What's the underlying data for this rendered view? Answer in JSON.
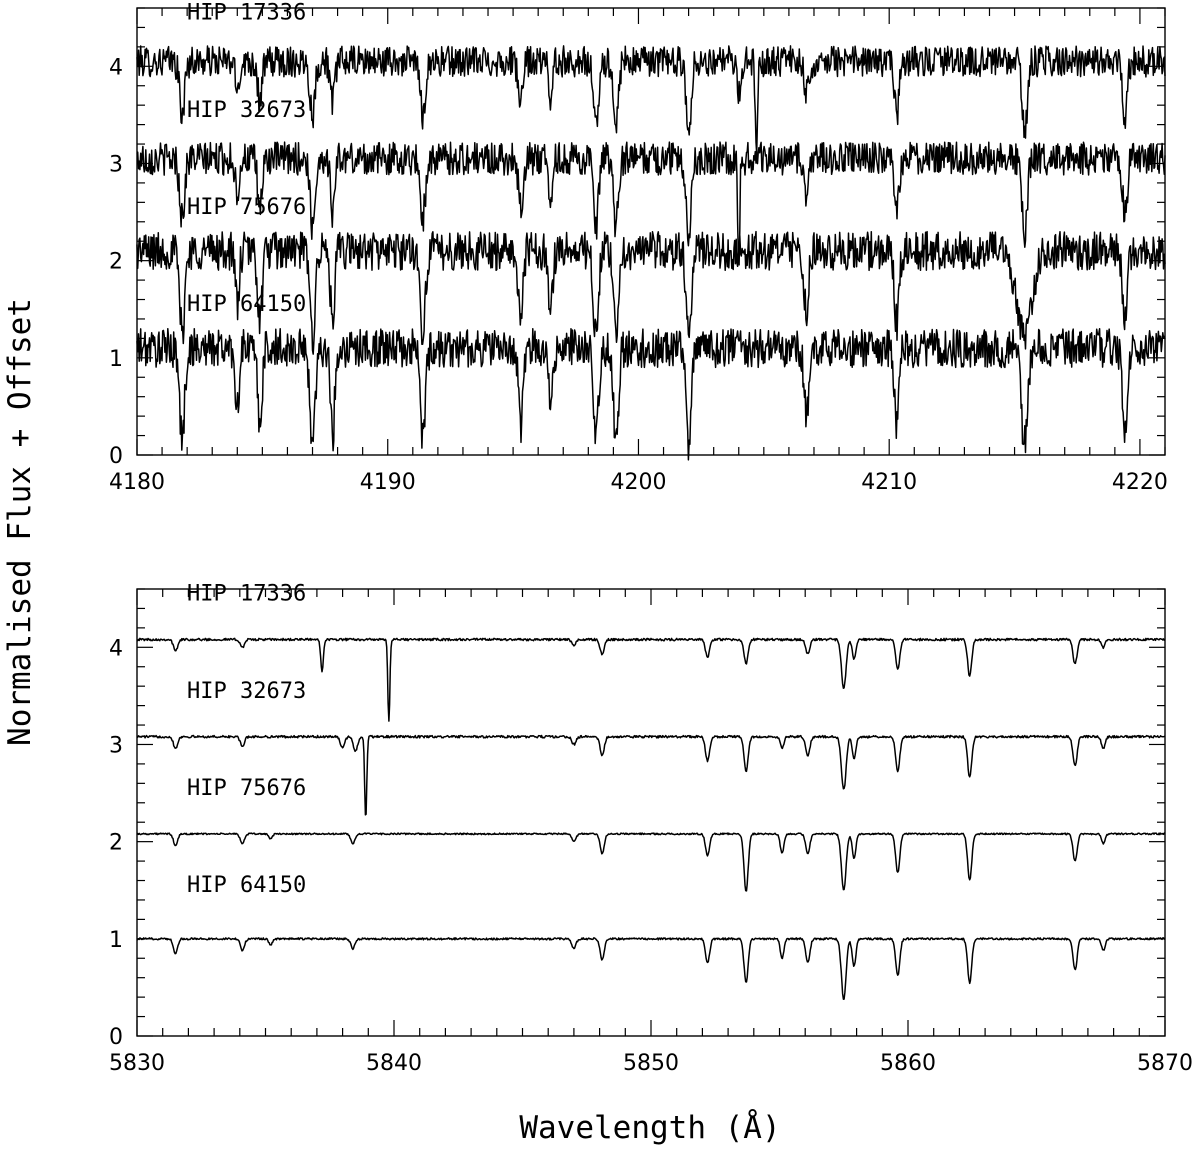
{
  "ylabel": "Normalised Flux + Offset",
  "xlabel": "Wavelength (Å)",
  "chart_data": [
    {
      "type": "line",
      "title": "",
      "xlim": [
        4180,
        4221
      ],
      "ylim": [
        0,
        4.6
      ],
      "xticks": [
        4180,
        4190,
        4200,
        4210,
        4220
      ],
      "yticks": [
        0,
        1,
        2,
        3,
        4
      ],
      "series": [
        {
          "name": "HIP 17336",
          "offset": 3,
          "continuum": 1.05,
          "lines": [
            [
              4181.8,
              0.55,
              0.1
            ],
            [
              4184.0,
              0.3,
              0.08
            ],
            [
              4184.9,
              0.4,
              0.09
            ],
            [
              4187.0,
              0.55,
              0.1
            ],
            [
              4187.8,
              0.45,
              0.08
            ],
            [
              4191.4,
              0.55,
              0.1
            ],
            [
              4195.3,
              0.45,
              0.09
            ],
            [
              4196.5,
              0.35,
              0.08
            ],
            [
              4198.3,
              0.7,
              0.1
            ],
            [
              4199.1,
              0.65,
              0.1
            ],
            [
              4202.0,
              0.7,
              0.1
            ],
            [
              4204.0,
              0.35,
              0.08
            ],
            [
              4204.7,
              0.95,
              0.04
            ],
            [
              4206.7,
              0.35,
              0.09
            ],
            [
              4210.3,
              0.55,
              0.09
            ],
            [
              4215.4,
              0.75,
              0.1
            ],
            [
              4219.4,
              0.55,
              0.09
            ]
          ],
          "noise": 0.16
        },
        {
          "name": "HIP 32673",
          "offset": 2,
          "continuum": 1.05,
          "lines": [
            [
              4181.8,
              0.6,
              0.1
            ],
            [
              4184.0,
              0.35,
              0.08
            ],
            [
              4184.9,
              0.5,
              0.09
            ],
            [
              4187.0,
              0.7,
              0.1
            ],
            [
              4187.8,
              0.55,
              0.08
            ],
            [
              4191.4,
              0.6,
              0.1
            ],
            [
              4195.3,
              0.5,
              0.09
            ],
            [
              4196.5,
              0.4,
              0.08
            ],
            [
              4198.3,
              0.75,
              0.1
            ],
            [
              4199.1,
              0.7,
              0.1
            ],
            [
              4202.0,
              0.75,
              0.1
            ],
            [
              4204.0,
              1.05,
              0.04
            ],
            [
              4206.7,
              0.4,
              0.09
            ],
            [
              4210.3,
              0.55,
              0.09
            ],
            [
              4215.4,
              0.8,
              0.1
            ],
            [
              4219.4,
              0.6,
              0.09
            ]
          ],
          "noise": 0.17
        },
        {
          "name": "HIP 75676",
          "offset": 1,
          "continuum": 1.1,
          "lines": [
            [
              4181.8,
              0.85,
              0.1
            ],
            [
              4184.0,
              0.55,
              0.08
            ],
            [
              4184.9,
              0.7,
              0.09
            ],
            [
              4187.0,
              0.9,
              0.1
            ],
            [
              4187.8,
              0.8,
              0.08
            ],
            [
              4191.4,
              0.85,
              0.1
            ],
            [
              4195.3,
              0.7,
              0.09
            ],
            [
              4196.5,
              0.6,
              0.08
            ],
            [
              4198.3,
              0.9,
              0.1
            ],
            [
              4199.1,
              0.85,
              0.1
            ],
            [
              4202.0,
              0.9,
              0.1
            ],
            [
              4206.7,
              0.6,
              0.09
            ],
            [
              4210.3,
              0.75,
              0.09
            ],
            [
              4215.4,
              0.9,
              0.3
            ],
            [
              4219.4,
              0.75,
              0.09
            ]
          ],
          "noise": 0.2
        },
        {
          "name": "HIP 64150",
          "offset": 0,
          "continuum": 1.1,
          "lines": [
            [
              4181.8,
              0.95,
              0.1
            ],
            [
              4184.0,
              0.6,
              0.08
            ],
            [
              4184.9,
              0.75,
              0.09
            ],
            [
              4187.0,
              1.0,
              0.1
            ],
            [
              4187.8,
              0.95,
              0.08
            ],
            [
              4191.4,
              0.9,
              0.1
            ],
            [
              4195.3,
              0.8,
              0.09
            ],
            [
              4196.5,
              0.65,
              0.08
            ],
            [
              4198.3,
              1.0,
              0.1
            ],
            [
              4199.1,
              0.95,
              0.1
            ],
            [
              4202.0,
              1.0,
              0.1
            ],
            [
              4206.7,
              0.7,
              0.09
            ],
            [
              4210.3,
              0.8,
              0.09
            ],
            [
              4215.4,
              1.0,
              0.12
            ],
            [
              4219.4,
              0.9,
              0.09
            ]
          ],
          "noise": 0.2
        }
      ]
    },
    {
      "type": "line",
      "title": "",
      "xlim": [
        5830,
        5870
      ],
      "ylim": [
        0,
        4.6
      ],
      "xticks": [
        5830,
        5840,
        5850,
        5860,
        5870
      ],
      "yticks": [
        0,
        1,
        2,
        3,
        4
      ],
      "series": [
        {
          "name": "HIP 17336",
          "offset": 3,
          "continuum": 1.08,
          "lines": [
            [
              5831.5,
              0.12,
              0.08
            ],
            [
              5834.1,
              0.08,
              0.08
            ],
            [
              5837.2,
              0.32,
              0.05
            ],
            [
              5839.8,
              0.85,
              0.04
            ],
            [
              5847.0,
              0.06,
              0.08
            ],
            [
              5848.1,
              0.15,
              0.08
            ],
            [
              5852.2,
              0.18,
              0.08
            ],
            [
              5853.7,
              0.25,
              0.08
            ],
            [
              5856.1,
              0.15,
              0.08
            ],
            [
              5857.5,
              0.5,
              0.09
            ],
            [
              5857.9,
              0.2,
              0.07
            ],
            [
              5859.6,
              0.3,
              0.08
            ],
            [
              5862.4,
              0.38,
              0.08
            ],
            [
              5866.5,
              0.25,
              0.08
            ],
            [
              5867.6,
              0.08,
              0.07
            ]
          ],
          "noise": 0.012
        },
        {
          "name": "HIP 32673",
          "offset": 2,
          "continuum": 1.08,
          "lines": [
            [
              5831.5,
              0.12,
              0.08
            ],
            [
              5834.1,
              0.1,
              0.08
            ],
            [
              5838.0,
              0.12,
              0.08
            ],
            [
              5838.5,
              0.15,
              0.08
            ],
            [
              5838.9,
              0.85,
              0.04
            ],
            [
              5847.0,
              0.08,
              0.08
            ],
            [
              5848.1,
              0.2,
              0.08
            ],
            [
              5852.2,
              0.25,
              0.08
            ],
            [
              5853.7,
              0.35,
              0.08
            ],
            [
              5855.1,
              0.12,
              0.07
            ],
            [
              5856.1,
              0.2,
              0.08
            ],
            [
              5857.5,
              0.55,
              0.09
            ],
            [
              5857.9,
              0.22,
              0.07
            ],
            [
              5859.6,
              0.35,
              0.08
            ],
            [
              5862.4,
              0.42,
              0.08
            ],
            [
              5866.5,
              0.3,
              0.08
            ],
            [
              5867.6,
              0.12,
              0.07
            ]
          ],
          "noise": 0.012
        },
        {
          "name": "HIP 75676",
          "offset": 1,
          "continuum": 1.08,
          "lines": [
            [
              5831.5,
              0.12,
              0.08
            ],
            [
              5834.1,
              0.1,
              0.08
            ],
            [
              5835.2,
              0.05,
              0.07
            ],
            [
              5838.4,
              0.1,
              0.08
            ],
            [
              5847.0,
              0.08,
              0.08
            ],
            [
              5848.1,
              0.2,
              0.08
            ],
            [
              5852.2,
              0.22,
              0.08
            ],
            [
              5853.7,
              0.6,
              0.08
            ],
            [
              5855.1,
              0.2,
              0.07
            ],
            [
              5856.1,
              0.2,
              0.08
            ],
            [
              5857.5,
              0.58,
              0.09
            ],
            [
              5857.9,
              0.25,
              0.07
            ],
            [
              5859.6,
              0.4,
              0.08
            ],
            [
              5862.4,
              0.48,
              0.08
            ],
            [
              5866.5,
              0.28,
              0.08
            ],
            [
              5867.6,
              0.1,
              0.07
            ]
          ],
          "noise": 0.008
        },
        {
          "name": "HIP 64150",
          "offset": 0,
          "continuum": 1.0,
          "lines": [
            [
              5831.5,
              0.15,
              0.08
            ],
            [
              5834.1,
              0.12,
              0.08
            ],
            [
              5835.2,
              0.06,
              0.07
            ],
            [
              5838.4,
              0.1,
              0.08
            ],
            [
              5847.0,
              0.1,
              0.08
            ],
            [
              5848.1,
              0.22,
              0.08
            ],
            [
              5852.2,
              0.25,
              0.08
            ],
            [
              5853.7,
              0.45,
              0.08
            ],
            [
              5855.1,
              0.2,
              0.07
            ],
            [
              5856.1,
              0.25,
              0.08
            ],
            [
              5857.5,
              0.62,
              0.09
            ],
            [
              5857.9,
              0.28,
              0.07
            ],
            [
              5859.6,
              0.38,
              0.08
            ],
            [
              5862.4,
              0.45,
              0.08
            ],
            [
              5866.5,
              0.32,
              0.08
            ],
            [
              5867.6,
              0.12,
              0.07
            ]
          ],
          "noise": 0.01
        }
      ]
    }
  ]
}
